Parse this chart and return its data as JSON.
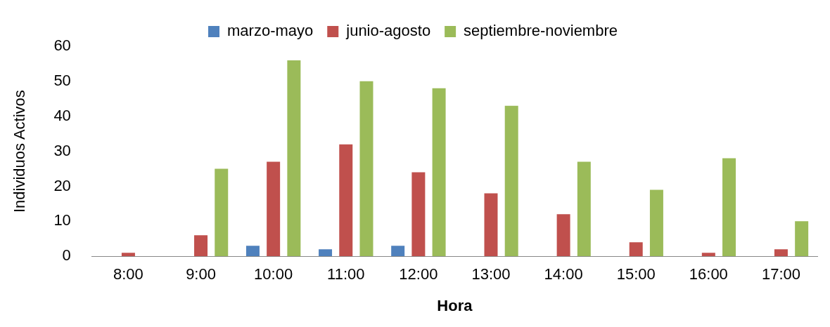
{
  "chart_data": {
    "type": "bar",
    "xlabel": "Hora",
    "ylabel": "Individuos Activos",
    "categories": [
      "8:00",
      "9:00",
      "10:00",
      "11:00",
      "12:00",
      "13:00",
      "14:00",
      "15:00",
      "16:00",
      "17:00"
    ],
    "series": [
      {
        "name": "marzo-mayo",
        "color": "#4f81bd",
        "values": [
          0,
          0,
          3,
          2,
          3,
          0,
          0,
          0,
          0,
          0
        ]
      },
      {
        "name": "junio-agosto",
        "color": "#c0504d",
        "values": [
          1,
          6,
          27,
          32,
          24,
          18,
          12,
          4,
          1,
          2
        ]
      },
      {
        "name": "septiembre-noviembre",
        "color": "#9bbb59",
        "values": [
          0,
          25,
          56,
          50,
          48,
          43,
          27,
          19,
          28,
          10
        ]
      }
    ],
    "ylim": [
      0,
      60
    ],
    "yticks": [
      0,
      10,
      20,
      30,
      40,
      50,
      60
    ],
    "grid": false,
    "legend": "top"
  }
}
